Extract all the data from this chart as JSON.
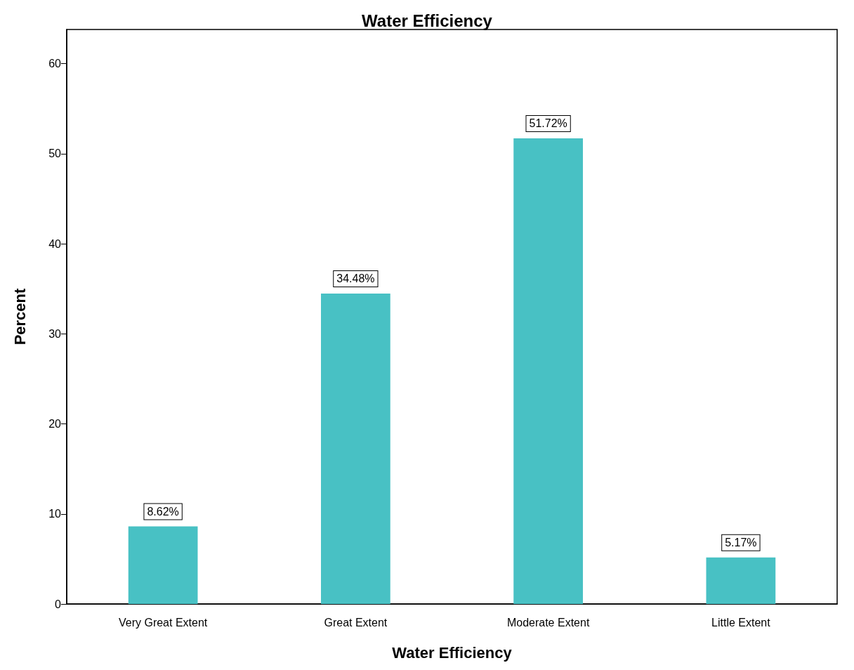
{
  "chart_data": {
    "type": "bar",
    "title": "Water Efficiency",
    "xlabel": "Water Efficiency",
    "ylabel": "Percent",
    "categories": [
      "Very Great Extent",
      "Great Extent",
      "Moderate Extent",
      "Little Extent"
    ],
    "values": [
      8.62,
      34.48,
      51.72,
      5.17
    ],
    "value_labels": [
      "8.62%",
      "34.48%",
      "51.72%",
      "5.17%"
    ],
    "color": "#48c1c4",
    "ylim": [
      0,
      63.8
    ],
    "yticks": [
      0,
      10,
      20,
      30,
      40,
      50,
      60
    ],
    "grid": false
  }
}
